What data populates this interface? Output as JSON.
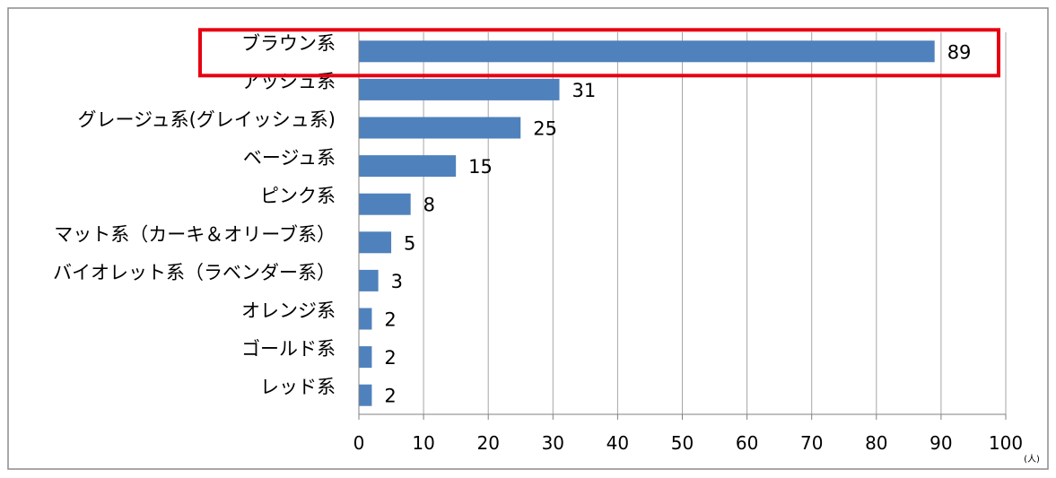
{
  "chart_data": {
    "type": "bar",
    "orientation": "horizontal",
    "categories": [
      "ブラウン系",
      "アッシュ系",
      "グレージュ系(グレイッシュ系)",
      "ベージュ系",
      "ピンク系",
      "マット系（カーキ＆オリーブ系）",
      "バイオレット系（ラベンダー系）",
      "オレンジ系",
      "ゴールド系",
      "レッド系"
    ],
    "values": [
      89,
      31,
      25,
      15,
      8,
      5,
      3,
      2,
      2,
      2
    ],
    "data_labels": [
      "89",
      "31",
      "25",
      "15",
      "8",
      "5",
      "3",
      "2",
      "2",
      "2"
    ],
    "xlim": [
      0,
      100
    ],
    "x_ticks": [
      "0",
      "10",
      "20",
      "30",
      "40",
      "50",
      "60",
      "70",
      "80",
      "90",
      "100"
    ],
    "unit": "(人)",
    "grid": "vertical",
    "highlighted_category": "ブラウン系",
    "colors": {
      "bar": "#4f81bd",
      "highlight": "#e60012",
      "grid": "#a6a6a6"
    }
  }
}
